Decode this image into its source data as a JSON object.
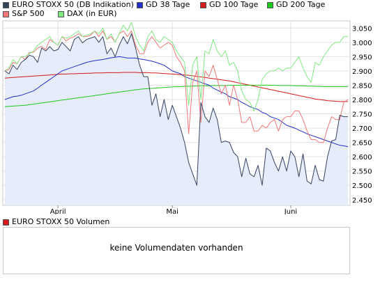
{
  "legend": {
    "items": [
      {
        "label": "EURO STOXX 50 (DB Indikation)",
        "color": "#34425e"
      },
      {
        "label": "GD 38 Tage",
        "color": "#1f2fc8"
      },
      {
        "label": "GD 100 Tage",
        "color": "#d21a1a"
      },
      {
        "label": "GD 200 Tage",
        "color": "#1fc81f"
      },
      {
        "label": "S&P 500",
        "color": "#f07878"
      },
      {
        "label": "DAX (in EUR)",
        "color": "#82e882"
      }
    ]
  },
  "volume": {
    "legend_label": "EURO STOXX 50 Volumen",
    "legend_color": "#d21a1a",
    "message": "keine Volumendaten vorhanden"
  },
  "chart_data": {
    "type": "line",
    "x_tick_labels": [
      "April",
      "Mai",
      "Juni"
    ],
    "x_tick_index": [
      13,
      41,
      70
    ],
    "y_tick_labels": [
      "2.450",
      "2.500",
      "2.550",
      "2.600",
      "2.650",
      "2.700",
      "2.750",
      "2.800",
      "2.850",
      "2.900",
      "2.950",
      "3.000",
      "3.050"
    ],
    "ylim": [
      2.43,
      3.075
    ],
    "y_ticks": [
      2.45,
      2.5,
      2.55,
      2.6,
      2.65,
      2.7,
      2.75,
      2.8,
      2.85,
      2.9,
      2.95,
      3.0,
      3.05
    ],
    "grid": true,
    "series": [
      {
        "name": "EURO STOXX 50 (DB Indikation)",
        "color": "#34425e",
        "fill": "#e7ecfa",
        "width": 1,
        "values": [
          2.9,
          2.89,
          2.92,
          2.905,
          2.93,
          2.94,
          2.955,
          2.95,
          2.93,
          2.98,
          2.97,
          2.985,
          2.97,
          2.975,
          3.0,
          2.985,
          2.97,
          3.01,
          3.02,
          2.998,
          3.01,
          3.015,
          3.02,
          3.0,
          3.02,
          2.96,
          2.98,
          2.95,
          2.99,
          3.02,
          2.995,
          3.03,
          2.98,
          2.92,
          2.88,
          2.88,
          2.78,
          2.82,
          2.74,
          2.8,
          2.73,
          2.78,
          2.74,
          2.7,
          2.65,
          2.58,
          2.54,
          2.5,
          2.79,
          2.74,
          2.72,
          2.77,
          2.73,
          2.65,
          2.655,
          2.65,
          2.615,
          2.6,
          2.53,
          2.595,
          2.54,
          2.53,
          2.57,
          2.5,
          2.63,
          2.62,
          2.58,
          2.55,
          2.6,
          2.55,
          2.62,
          2.6,
          2.53,
          2.61,
          2.515,
          2.505,
          2.57,
          2.52,
          2.515,
          2.6,
          2.655,
          2.66,
          2.745,
          2.74,
          2.74
        ]
      },
      {
        "name": "S&P 500",
        "color": "#f07878",
        "width": 1,
        "values": [
          2.9,
          2.905,
          2.93,
          2.925,
          2.95,
          2.94,
          2.965,
          2.965,
          2.98,
          2.985,
          2.975,
          3.01,
          3.0,
          2.99,
          3.02,
          3.005,
          3.015,
          3.02,
          3.03,
          3.02,
          3.02,
          3.025,
          3.04,
          3.02,
          3.04,
          3.01,
          3.02,
          3.0,
          3.03,
          3.04,
          3.02,
          3.04,
          2.99,
          2.96,
          2.96,
          3.0,
          3.02,
          3.0,
          2.98,
          2.99,
          3.0,
          2.99,
          2.95,
          2.93,
          2.9,
          2.68,
          2.86,
          2.9,
          2.72,
          2.9,
          2.88,
          2.92,
          2.87,
          2.82,
          2.85,
          2.78,
          2.85,
          2.8,
          2.72,
          2.72,
          2.74,
          2.69,
          2.69,
          2.71,
          2.7,
          2.72,
          2.73,
          2.69,
          2.73,
          2.74,
          2.74,
          2.76,
          2.76,
          2.73,
          2.69,
          2.66,
          2.66,
          2.65,
          2.65,
          2.7,
          2.74,
          2.73,
          2.73,
          2.79,
          2.8
        ]
      },
      {
        "name": "DAX (in EUR)",
        "color": "#82e882",
        "width": 1,
        "values": [
          2.9,
          2.91,
          2.94,
          2.925,
          2.95,
          2.95,
          2.96,
          2.97,
          2.99,
          3.0,
          3.01,
          3.02,
          3.0,
          2.99,
          3.02,
          3.015,
          3.02,
          3.03,
          3.04,
          3.02,
          3.025,
          3.03,
          3.04,
          3.03,
          3.05,
          3.01,
          3.03,
          3.0,
          3.03,
          3.06,
          3.04,
          3.07,
          3.02,
          2.99,
          2.97,
          3.02,
          3.04,
          3.01,
          3.0,
          3.02,
          3.01,
          3.0,
          2.97,
          2.95,
          2.93,
          2.78,
          2.92,
          2.95,
          2.8,
          2.97,
          2.96,
          3.01,
          2.97,
          2.95,
          2.97,
          2.92,
          2.93,
          2.9,
          2.83,
          2.8,
          2.79,
          2.76,
          2.8,
          2.87,
          2.89,
          2.9,
          2.9,
          2.91,
          2.9,
          2.91,
          2.91,
          2.93,
          2.95,
          2.91,
          2.88,
          2.86,
          2.93,
          2.92,
          2.95,
          2.97,
          2.99,
          3.0,
          3.0,
          3.02,
          3.02
        ]
      },
      {
        "name": "GD 38 Tage",
        "color": "#1f2fc8",
        "width": 1,
        "values": [
          2.8,
          2.805,
          2.81,
          2.812,
          2.815,
          2.82,
          2.825,
          2.83,
          2.84,
          2.85,
          2.86,
          2.87,
          2.88,
          2.89,
          2.9,
          2.905,
          2.91,
          2.915,
          2.92,
          2.925,
          2.93,
          2.933,
          2.936,
          2.938,
          2.94,
          2.943,
          2.946,
          2.948,
          2.95,
          2.948,
          2.945,
          2.945,
          2.945,
          2.942,
          2.94,
          2.937,
          2.934,
          2.93,
          2.925,
          2.92,
          2.91,
          2.9,
          2.895,
          2.89,
          2.88,
          2.875,
          2.87,
          2.865,
          2.86,
          2.855,
          2.85,
          2.84,
          2.833,
          2.826,
          2.82,
          2.81,
          2.805,
          2.8,
          2.79,
          2.783,
          2.775,
          2.77,
          2.765,
          2.755,
          2.75,
          2.74,
          2.735,
          2.73,
          2.72,
          2.71,
          2.705,
          2.7,
          2.693,
          2.687,
          2.68,
          2.675,
          2.67,
          2.665,
          2.66,
          2.655,
          2.65,
          2.645,
          2.64,
          2.638,
          2.635
        ]
      },
      {
        "name": "GD 100 Tage",
        "color": "#d21a1a",
        "width": 1,
        "values": [
          2.875,
          2.876,
          2.877,
          2.878,
          2.879,
          2.88,
          2.881,
          2.882,
          2.883,
          2.884,
          2.885,
          2.886,
          2.887,
          2.888,
          2.889,
          2.889,
          2.89,
          2.89,
          2.891,
          2.891,
          2.892,
          2.892,
          2.893,
          2.893,
          2.893,
          2.894,
          2.894,
          2.894,
          2.894,
          2.895,
          2.895,
          2.895,
          2.895,
          2.894,
          2.894,
          2.894,
          2.893,
          2.893,
          2.892,
          2.891,
          2.89,
          2.889,
          2.888,
          2.887,
          2.886,
          2.885,
          2.883,
          2.881,
          2.879,
          2.877,
          2.875,
          2.873,
          2.871,
          2.869,
          2.867,
          2.865,
          2.862,
          2.859,
          2.856,
          2.853,
          2.85,
          2.847,
          2.844,
          2.841,
          2.838,
          2.835,
          2.832,
          2.829,
          2.826,
          2.823,
          2.82,
          2.817,
          2.814,
          2.811,
          2.808,
          2.805,
          2.802,
          2.8,
          2.798,
          2.796,
          2.795,
          2.794,
          2.793,
          2.793,
          2.793
        ]
      },
      {
        "name": "GD 200 Tage",
        "color": "#1fc81f",
        "width": 1,
        "values": [
          2.775,
          2.776,
          2.777,
          2.778,
          2.779,
          2.78,
          2.782,
          2.784,
          2.786,
          2.788,
          2.79,
          2.792,
          2.794,
          2.796,
          2.798,
          2.8,
          2.802,
          2.804,
          2.806,
          2.808,
          2.81,
          2.812,
          2.814,
          2.816,
          2.818,
          2.82,
          2.822,
          2.824,
          2.826,
          2.828,
          2.83,
          2.832,
          2.834,
          2.836,
          2.837,
          2.838,
          2.839,
          2.84,
          2.841,
          2.842,
          2.843,
          2.844,
          2.845,
          2.845,
          2.846,
          2.846,
          2.847,
          2.847,
          2.848,
          2.848,
          2.848,
          2.849,
          2.849,
          2.849,
          2.849,
          2.85,
          2.85,
          2.85,
          2.85,
          2.85,
          2.85,
          2.85,
          2.85,
          2.85,
          2.85,
          2.85,
          2.85,
          2.849,
          2.849,
          2.849,
          2.849,
          2.848,
          2.848,
          2.848,
          2.847,
          2.847,
          2.846,
          2.846,
          2.845,
          2.845,
          2.845,
          2.845,
          2.845,
          2.845,
          2.845
        ]
      }
    ]
  }
}
